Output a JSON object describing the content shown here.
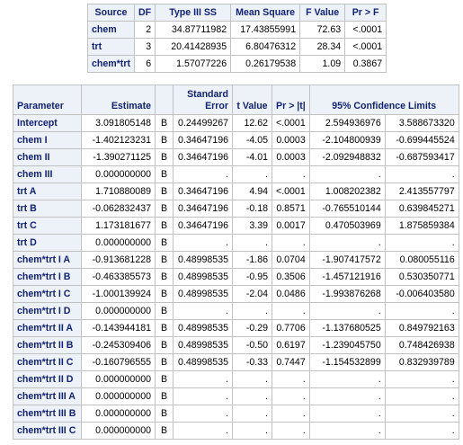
{
  "anova": {
    "headers": [
      "Source",
      "DF",
      "Type III SS",
      "Mean Square",
      "F Value",
      "Pr > F"
    ],
    "rows": [
      [
        "chem",
        "2",
        "34.87711982",
        "17.43855991",
        "72.63",
        "<.0001"
      ],
      [
        "trt",
        "3",
        "20.41428935",
        "6.80476312",
        "28.34",
        "<.0001"
      ],
      [
        "chem*trt",
        "6",
        "1.57077226",
        "0.26179538",
        "1.09",
        "0.3867"
      ]
    ]
  },
  "estimates": {
    "headers": {
      "parameter": "Parameter",
      "estimate": "Estimate",
      "flag": "",
      "se_line1": "Standard",
      "se_line2": "Error",
      "t": "t Value",
      "p": "Pr > |t|",
      "ci": "95% Confidence Limits"
    },
    "rows": [
      [
        "Intercept",
        "3.091805148",
        "B",
        "0.24499267",
        "12.62",
        "<.0001",
        "2.594936976",
        "3.588673320"
      ],
      [
        "chem I",
        "-1.402123231",
        "B",
        "0.34647196",
        "-4.05",
        "0.0003",
        "-2.104800939",
        "-0.699445524"
      ],
      [
        "chem II",
        "-1.390271125",
        "B",
        "0.34647196",
        "-4.01",
        "0.0003",
        "-2.092948832",
        "-0.687593417"
      ],
      [
        "chem III",
        "0.000000000",
        "B",
        ".",
        ".",
        ".",
        ".",
        "."
      ],
      [
        "trt A",
        "1.710880089",
        "B",
        "0.34647196",
        "4.94",
        "<.0001",
        "1.008202382",
        "2.413557797"
      ],
      [
        "trt B",
        "-0.062832437",
        "B",
        "0.34647196",
        "-0.18",
        "0.8571",
        "-0.765510144",
        "0.639845271"
      ],
      [
        "trt C",
        "1.173181677",
        "B",
        "0.34647196",
        "3.39",
        "0.0017",
        "0.470503969",
        "1.875859384"
      ],
      [
        "trt D",
        "0.000000000",
        "B",
        ".",
        ".",
        ".",
        ".",
        "."
      ],
      [
        "chem*trt I A",
        "-0.913681228",
        "B",
        "0.48998535",
        "-1.86",
        "0.0704",
        "-1.907417572",
        "0.080055116"
      ],
      [
        "chem*trt I B",
        "-0.463385573",
        "B",
        "0.48998535",
        "-0.95",
        "0.3506",
        "-1.457121916",
        "0.530350771"
      ],
      [
        "chem*trt I C",
        "-1.000139924",
        "B",
        "0.48998535",
        "-2.04",
        "0.0486",
        "-1.993876268",
        "-0.006403580"
      ],
      [
        "chem*trt I D",
        "0.000000000",
        "B",
        ".",
        ".",
        ".",
        ".",
        "."
      ],
      [
        "chem*trt II A",
        "-0.143944181",
        "B",
        "0.48998535",
        "-0.29",
        "0.7706",
        "-1.137680525",
        "0.849792163"
      ],
      [
        "chem*trt II B",
        "-0.245309406",
        "B",
        "0.48998535",
        "-0.50",
        "0.6197",
        "-1.239045750",
        "0.748426938"
      ],
      [
        "chem*trt II C",
        "-0.160796555",
        "B",
        "0.48998535",
        "-0.33",
        "0.7447",
        "-1.154532899",
        "0.832939789"
      ],
      [
        "chem*trt II D",
        "0.000000000",
        "B",
        ".",
        ".",
        ".",
        ".",
        "."
      ],
      [
        "chem*trt III A",
        "0.000000000",
        "B",
        ".",
        ".",
        ".",
        ".",
        "."
      ],
      [
        "chem*trt III B",
        "0.000000000",
        "B",
        ".",
        ".",
        ".",
        ".",
        "."
      ],
      [
        "chem*trt III C",
        "0.000000000",
        "B",
        ".",
        ".",
        ".",
        ".",
        "."
      ]
    ]
  }
}
